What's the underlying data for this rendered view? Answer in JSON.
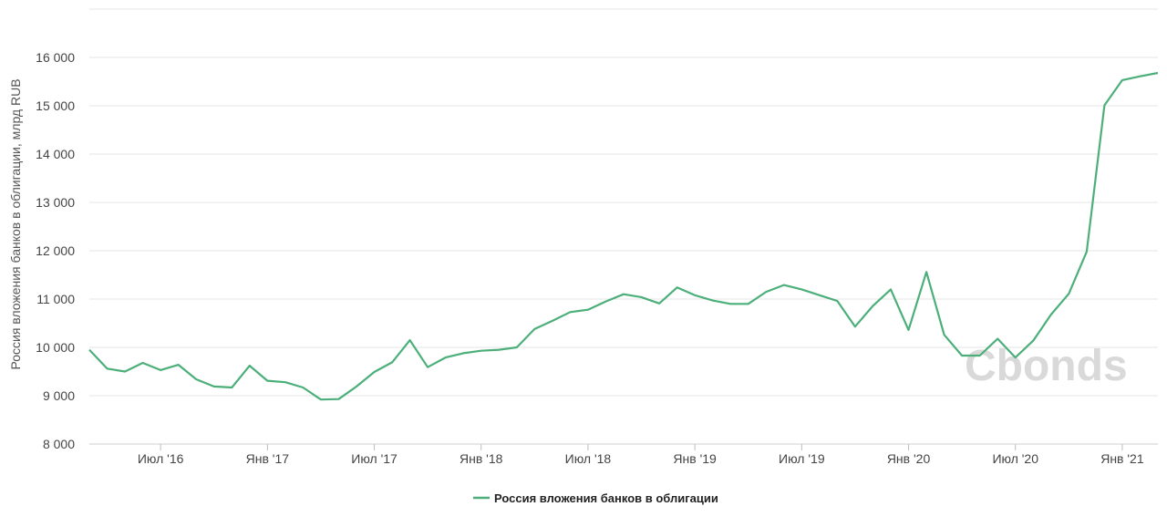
{
  "chart_data": {
    "type": "line",
    "ylabel": "Россия вложения банков в облигации, млрд RUB",
    "ylim": [
      8000,
      17000
    ],
    "yticks": [
      8000,
      9000,
      10000,
      11000,
      12000,
      13000,
      14000,
      15000,
      16000
    ],
    "ytick_labels": [
      "8 000",
      "9 000",
      "10 000",
      "11 000",
      "12 000",
      "13 000",
      "14 000",
      "15 000",
      "16 000"
    ],
    "xticks": [
      {
        "x": "2016-07",
        "label": "Июл '16"
      },
      {
        "x": "2017-01",
        "label": "Янв '17"
      },
      {
        "x": "2017-07",
        "label": "Июл '17"
      },
      {
        "x": "2018-01",
        "label": "Янв '18"
      },
      {
        "x": "2018-07",
        "label": "Июл '18"
      },
      {
        "x": "2019-01",
        "label": "Янв '19"
      },
      {
        "x": "2019-07",
        "label": "Июл '19"
      },
      {
        "x": "2020-01",
        "label": "Янв '20"
      },
      {
        "x": "2020-07",
        "label": "Июл '20"
      },
      {
        "x": "2021-01",
        "label": "Янв '21"
      }
    ],
    "xlim": [
      "2016-03",
      "2021-03"
    ],
    "grid": true,
    "legend_position": "bottom-center",
    "series": [
      {
        "name": "Россия вложения банков в облигации",
        "color": "#4caf7a",
        "points": [
          [
            "2016-03",
            9950
          ],
          [
            "2016-04",
            9560
          ],
          [
            "2016-05",
            9500
          ],
          [
            "2016-06",
            9680
          ],
          [
            "2016-07",
            9530
          ],
          [
            "2016-08",
            9640
          ],
          [
            "2016-09",
            9340
          ],
          [
            "2016-10",
            9190
          ],
          [
            "2016-11",
            9170
          ],
          [
            "2016-12",
            9620
          ],
          [
            "2017-01",
            9310
          ],
          [
            "2017-02",
            9280
          ],
          [
            "2017-03",
            9170
          ],
          [
            "2017-04",
            8920
          ],
          [
            "2017-05",
            8930
          ],
          [
            "2017-06",
            9190
          ],
          [
            "2017-07",
            9490
          ],
          [
            "2017-08",
            9690
          ],
          [
            "2017-09",
            10150
          ],
          [
            "2017-10",
            9590
          ],
          [
            "2017-11",
            9790
          ],
          [
            "2017-12",
            9880
          ],
          [
            "2018-01",
            9930
          ],
          [
            "2018-02",
            9950
          ],
          [
            "2018-03",
            10000
          ],
          [
            "2018-04",
            10380
          ],
          [
            "2018-05",
            10550
          ],
          [
            "2018-06",
            10730
          ],
          [
            "2018-07",
            10780
          ],
          [
            "2018-08",
            10950
          ],
          [
            "2018-09",
            11100
          ],
          [
            "2018-10",
            11040
          ],
          [
            "2018-11",
            10910
          ],
          [
            "2018-12",
            11240
          ],
          [
            "2019-01",
            11080
          ],
          [
            "2019-02",
            10970
          ],
          [
            "2019-03",
            10900
          ],
          [
            "2019-04",
            10900
          ],
          [
            "2019-05",
            11150
          ],
          [
            "2019-06",
            11290
          ],
          [
            "2019-07",
            11200
          ],
          [
            "2019-08",
            11080
          ],
          [
            "2019-09",
            10960
          ],
          [
            "2019-10",
            10430
          ],
          [
            "2019-11",
            10860
          ],
          [
            "2019-12",
            11200
          ],
          [
            "2020-01",
            10360
          ],
          [
            "2020-02",
            11560
          ],
          [
            "2020-03",
            10260
          ],
          [
            "2020-04",
            9830
          ],
          [
            "2020-05",
            9830
          ],
          [
            "2020-06",
            10180
          ],
          [
            "2020-07",
            9790
          ],
          [
            "2020-08",
            10140
          ],
          [
            "2020-09",
            10680
          ],
          [
            "2020-10",
            11110
          ],
          [
            "2020-11",
            11980
          ],
          [
            "2020-12",
            15010
          ],
          [
            "2021-01",
            15530
          ],
          [
            "2021-02",
            15610
          ],
          [
            "2021-03",
            15680
          ]
        ]
      }
    ]
  },
  "legend": {
    "label": "Россия вложения банков в облигации",
    "color": "#4caf7a"
  },
  "watermark": {
    "text": "Cbonds"
  }
}
